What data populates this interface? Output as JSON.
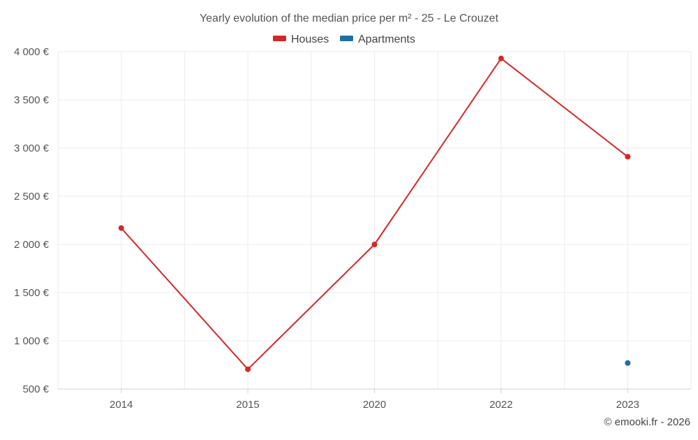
{
  "chart_data": {
    "type": "line",
    "title": "Yearly evolution of the median price per m² - 25 - Le Crouzet",
    "categories": [
      "2014",
      "2015",
      "2020",
      "2022",
      "2023"
    ],
    "y_ticks": [
      500,
      1000,
      1500,
      2000,
      2500,
      3000,
      3500,
      4000
    ],
    "y_tick_labels": [
      "500 €",
      "1 000 €",
      "1 500 €",
      "2 000 €",
      "2 500 €",
      "3 000 €",
      "3 500 €",
      "4 000 €"
    ],
    "ylim": [
      500,
      4000
    ],
    "xlabel": "",
    "ylabel": "",
    "grid": true,
    "legend_position": "top-center",
    "series": [
      {
        "name": "Houses",
        "color": "#d62728",
        "values": [
          2170,
          705,
          2000,
          3930,
          2910
        ]
      },
      {
        "name": "Apartments",
        "color": "#1f6fa3",
        "values": [
          null,
          null,
          null,
          null,
          770
        ]
      }
    ]
  },
  "credit": "© emooki.fr - 2026"
}
